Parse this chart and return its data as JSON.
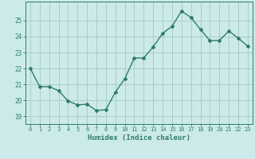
{
  "x": [
    0,
    1,
    2,
    3,
    4,
    5,
    6,
    7,
    8,
    9,
    10,
    11,
    12,
    13,
    14,
    15,
    16,
    17,
    18,
    19,
    20,
    21,
    22,
    23
  ],
  "y": [
    22.0,
    20.85,
    20.85,
    20.6,
    19.95,
    19.7,
    19.75,
    19.35,
    19.4,
    20.5,
    21.35,
    22.65,
    22.65,
    23.35,
    24.2,
    24.65,
    25.6,
    25.2,
    24.45,
    23.75,
    23.75,
    24.35,
    23.9,
    23.4
  ],
  "line_color": "#2e7d6e",
  "marker": "D",
  "marker_size": 2.0,
  "bg_color": "#cceaea",
  "grid_color": "#aacccc",
  "xlabel": "Humidex (Indice chaleur)",
  "ylim": [
    18.5,
    26.2
  ],
  "yticks": [
    19,
    20,
    21,
    22,
    23,
    24,
    25
  ],
  "xticks": [
    0,
    1,
    2,
    3,
    4,
    5,
    6,
    7,
    8,
    9,
    10,
    11,
    12,
    13,
    14,
    15,
    16,
    17,
    18,
    19,
    20,
    21,
    22,
    23
  ],
  "xlabel_color": "#2e7d6e",
  "tick_color": "#2e7d6e",
  "linewidth": 1.0
}
